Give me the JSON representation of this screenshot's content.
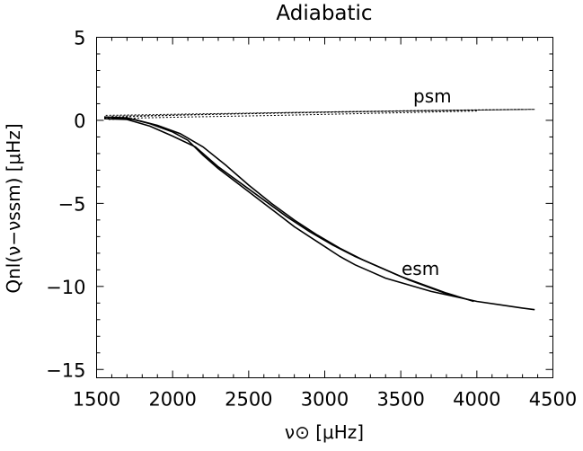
{
  "chart_data": {
    "type": "line",
    "title": "Adiabatic",
    "xlabel": "ν⊙ [μHz]",
    "ylabel": "Qnl(ν−νssm) [μHz]",
    "xlim": [
      1500,
      4500
    ],
    "ylim": [
      -15.5,
      5
    ],
    "x_ticks": [
      1500,
      2000,
      2500,
      3000,
      3500,
      4000,
      4500
    ],
    "y_ticks": [
      5,
      0,
      -5,
      -10,
      -15
    ],
    "x_tick_labels": [
      "1500",
      "2000",
      "2500",
      "3000",
      "3500",
      "4000",
      "4500"
    ],
    "y_tick_labels": [
      "5",
      "0",
      "−5",
      "−10",
      "−15"
    ],
    "grid": false,
    "legend": "none",
    "annotations": [
      {
        "text": "psm",
        "x": 3650,
        "y": 1.3
      },
      {
        "text": "esm",
        "x": 3600,
        "y": -8.7
      }
    ],
    "series": [
      {
        "style": "solid",
        "x": [
          1550,
          1700,
          1850,
          2000,
          2100,
          2200,
          2300,
          2400,
          2500,
          2600,
          2700,
          2800,
          2900,
          3000,
          3100,
          3200,
          3300,
          3400,
          3550,
          3700,
          3850,
          4000,
          4150,
          4300,
          4380
        ],
        "values": [
          0.2,
          0.15,
          -0.2,
          -0.7,
          -1.2,
          -2.1,
          -2.9,
          -3.6,
          -4.3,
          -5.0,
          -5.7,
          -6.4,
          -7.0,
          -7.6,
          -8.2,
          -8.7,
          -9.1,
          -9.5,
          -9.9,
          -10.3,
          -10.6,
          -10.9,
          -11.1,
          -11.3,
          -11.4
        ]
      },
      {
        "style": "solid",
        "x": [
          1550,
          1700,
          1850,
          2000,
          2150,
          2300,
          2450,
          2600,
          2750,
          2900,
          3050,
          3200,
          3350,
          3500,
          3650,
          3800,
          3980
        ],
        "values": [
          0.1,
          0.05,
          -0.35,
          -0.95,
          -1.6,
          -2.8,
          -3.8,
          -4.8,
          -5.8,
          -6.7,
          -7.5,
          -8.2,
          -8.8,
          -9.4,
          -9.9,
          -10.4,
          -10.9
        ]
      },
      {
        "style": "solid",
        "x": [
          1600,
          1750,
          1900,
          2050,
          2200,
          2350,
          2500,
          2650,
          2800,
          2950,
          3100,
          3250,
          3400,
          3550,
          3700,
          3850
        ],
        "values": [
          0.15,
          0.05,
          -0.3,
          -0.8,
          -1.6,
          -2.7,
          -3.9,
          -5.0,
          -6.0,
          -6.9,
          -7.7,
          -8.4,
          -9.0,
          -9.6,
          -10.1,
          -10.6
        ]
      },
      {
        "style": "dotted",
        "x": [
          1550,
          1800,
          2100,
          2400,
          2700,
          3000,
          3300,
          3600,
          3900,
          4200,
          4380
        ],
        "values": [
          0.15,
          0.25,
          0.32,
          0.38,
          0.43,
          0.48,
          0.52,
          0.56,
          0.6,
          0.64,
          0.66
        ]
      },
      {
        "style": "dotted",
        "x": [
          1560,
          1800,
          2100,
          2400,
          2700,
          3000,
          3300,
          3600,
          3900,
          4200,
          4380
        ],
        "values": [
          0.3,
          0.33,
          0.38,
          0.42,
          0.46,
          0.5,
          0.54,
          0.58,
          0.61,
          0.64,
          0.66
        ]
      },
      {
        "style": "dotted",
        "x": [
          1580,
          1800,
          2100,
          2400,
          2700,
          3000,
          3300,
          3600,
          3800,
          4000
        ],
        "values": [
          0.05,
          0.15,
          0.2,
          0.25,
          0.3,
          0.36,
          0.42,
          0.48,
          0.52,
          0.56
        ]
      },
      {
        "style": "dotted",
        "x": [
          1600,
          1900,
          2200,
          2500,
          2800,
          3100,
          3400,
          3700,
          4000,
          4300
        ],
        "values": [
          0.25,
          0.3,
          0.36,
          0.42,
          0.47,
          0.52,
          0.56,
          0.6,
          0.63,
          0.66
        ]
      }
    ]
  }
}
